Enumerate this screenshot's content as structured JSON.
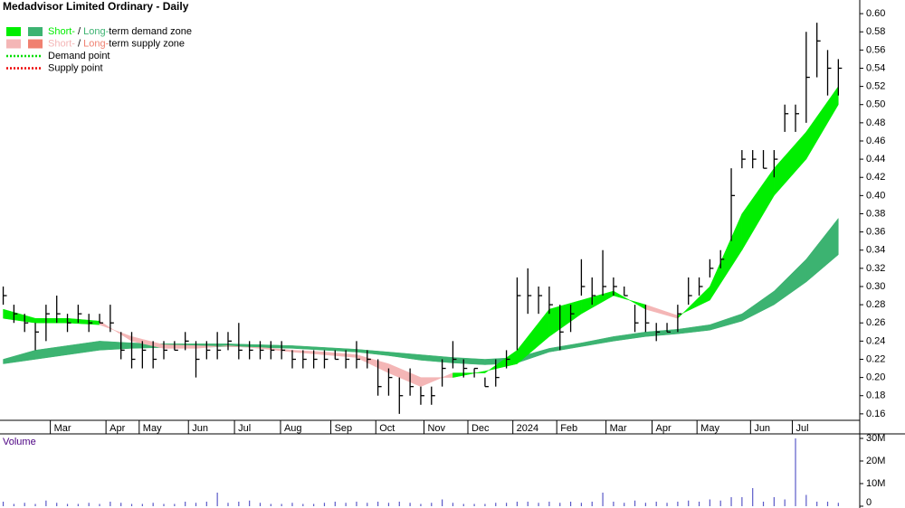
{
  "chart_data": [
    {
      "type": "ohlc",
      "title": "Medadvisor Limited Ordinary - Daily",
      "x": [
        0,
        1,
        2,
        3,
        4,
        5,
        6,
        7,
        8,
        9,
        10,
        11,
        12,
        13,
        14,
        15,
        16,
        17,
        18,
        19,
        20,
        21,
        22,
        23,
        24,
        25,
        26,
        27,
        28,
        29,
        30,
        31,
        32,
        33,
        34,
        35,
        36,
        37,
        38,
        39,
        40,
        41,
        42,
        43,
        44,
        45,
        46,
        47,
        48,
        49,
        50,
        51,
        52,
        53,
        54,
        55,
        56,
        57,
        58,
        59,
        60,
        61,
        62,
        63,
        64,
        65,
        66,
        67,
        68,
        69,
        70,
        71,
        72,
        73,
        74,
        75,
        76,
        77,
        78
      ],
      "high": [
        0.3,
        0.28,
        0.27,
        0.26,
        0.28,
        0.29,
        0.27,
        0.28,
        0.27,
        0.27,
        0.28,
        0.25,
        0.25,
        0.24,
        0.24,
        0.24,
        0.24,
        0.25,
        0.24,
        0.24,
        0.25,
        0.25,
        0.26,
        0.24,
        0.24,
        0.24,
        0.24,
        0.23,
        0.23,
        0.23,
        0.23,
        0.23,
        0.23,
        0.24,
        0.23,
        0.22,
        0.21,
        0.2,
        0.21,
        0.19,
        0.19,
        0.22,
        0.24,
        0.22,
        0.21,
        0.2,
        0.22,
        0.23,
        0.31,
        0.32,
        0.3,
        0.3,
        0.28,
        0.28,
        0.33,
        0.31,
        0.34,
        0.31,
        0.3,
        0.28,
        0.28,
        0.26,
        0.26,
        0.28,
        0.31,
        0.31,
        0.33,
        0.34,
        0.43,
        0.45,
        0.45,
        0.45,
        0.45,
        0.5,
        0.5,
        0.58,
        0.59,
        0.56,
        0.55
      ],
      "low": [
        0.28,
        0.26,
        0.25,
        0.23,
        0.24,
        0.26,
        0.25,
        0.26,
        0.25,
        0.26,
        0.25,
        0.22,
        0.21,
        0.21,
        0.21,
        0.22,
        0.23,
        0.23,
        0.2,
        0.22,
        0.22,
        0.23,
        0.22,
        0.22,
        0.22,
        0.22,
        0.22,
        0.21,
        0.21,
        0.21,
        0.21,
        0.22,
        0.21,
        0.21,
        0.21,
        0.18,
        0.18,
        0.16,
        0.18,
        0.17,
        0.17,
        0.19,
        0.21,
        0.2,
        0.2,
        0.19,
        0.19,
        0.21,
        0.23,
        0.27,
        0.27,
        0.27,
        0.23,
        0.25,
        0.29,
        0.28,
        0.29,
        0.29,
        0.29,
        0.25,
        0.25,
        0.24,
        0.25,
        0.25,
        0.28,
        0.29,
        0.31,
        0.32,
        0.35,
        0.43,
        0.43,
        0.43,
        0.42,
        0.47,
        0.47,
        0.48,
        0.53,
        0.51,
        0.51
      ],
      "close": [
        0.29,
        0.27,
        0.26,
        0.25,
        0.27,
        0.27,
        0.26,
        0.27,
        0.26,
        0.26,
        0.26,
        0.23,
        0.22,
        0.23,
        0.22,
        0.23,
        0.23,
        0.24,
        0.22,
        0.23,
        0.23,
        0.24,
        0.23,
        0.23,
        0.23,
        0.23,
        0.23,
        0.22,
        0.22,
        0.22,
        0.22,
        0.22,
        0.22,
        0.22,
        0.22,
        0.19,
        0.2,
        0.18,
        0.19,
        0.18,
        0.18,
        0.21,
        0.22,
        0.21,
        0.21,
        0.19,
        0.2,
        0.22,
        0.29,
        0.29,
        0.29,
        0.28,
        0.25,
        0.27,
        0.3,
        0.29,
        0.3,
        0.3,
        0.29,
        0.26,
        0.26,
        0.25,
        0.25,
        0.27,
        0.29,
        0.3,
        0.32,
        0.33,
        0.4,
        0.44,
        0.44,
        0.43,
        0.44,
        0.49,
        0.49,
        0.53,
        0.57,
        0.54,
        0.54
      ],
      "color": "#000000",
      "short_zone": {
        "x": [
          0,
          3,
          6,
          9,
          12,
          15,
          18,
          21,
          24,
          27,
          30,
          33,
          36,
          39,
          42,
          45,
          48,
          51,
          54,
          57,
          60,
          63,
          66,
          69,
          72,
          75,
          78
        ],
        "fast": [
          0.275,
          0.265,
          0.265,
          0.262,
          0.24,
          0.232,
          0.232,
          0.235,
          0.232,
          0.228,
          0.225,
          0.222,
          0.205,
          0.19,
          0.205,
          0.205,
          0.23,
          0.275,
          0.285,
          0.295,
          0.275,
          0.265,
          0.3,
          0.38,
          0.43,
          0.47,
          0.52
        ],
        "slow": [
          0.265,
          0.26,
          0.26,
          0.258,
          0.245,
          0.236,
          0.235,
          0.234,
          0.233,
          0.23,
          0.228,
          0.225,
          0.215,
          0.2,
          0.2,
          0.207,
          0.215,
          0.245,
          0.27,
          0.29,
          0.28,
          0.268,
          0.285,
          0.34,
          0.4,
          0.44,
          0.5
        ],
        "demand_color": "#00ee00",
        "supply_color": "#f4b6b6"
      },
      "long_zone": {
        "x": [
          0,
          3,
          6,
          9,
          12,
          15,
          18,
          21,
          24,
          27,
          30,
          33,
          36,
          39,
          42,
          45,
          48,
          51,
          54,
          57,
          60,
          63,
          66,
          69,
          72,
          75,
          78
        ],
        "fast": [
          0.22,
          0.23,
          0.235,
          0.24,
          0.238,
          0.237,
          0.237,
          0.237,
          0.236,
          0.235,
          0.233,
          0.231,
          0.228,
          0.225,
          0.222,
          0.22,
          0.222,
          0.232,
          0.238,
          0.245,
          0.25,
          0.253,
          0.258,
          0.27,
          0.295,
          0.33,
          0.375
        ],
        "slow": [
          0.215,
          0.22,
          0.225,
          0.23,
          0.232,
          0.233,
          0.233,
          0.234,
          0.233,
          0.232,
          0.23,
          0.228,
          0.224,
          0.219,
          0.216,
          0.214,
          0.216,
          0.228,
          0.234,
          0.24,
          0.245,
          0.248,
          0.252,
          0.262,
          0.28,
          0.305,
          0.335
        ],
        "demand_color": "#3cb371",
        "supply_color": "#f26522"
      },
      "legend": [
        {
          "parts": [
            "Short-",
            " / ",
            "Long-",
            "term demand zone"
          ],
          "colors": [
            "#00ee00",
            "#000000",
            "#3cb371",
            "#000000"
          ],
          "swatches": [
            "#00ee00",
            "#3cb371"
          ]
        },
        {
          "parts": [
            "Short-",
            " / ",
            "Long-",
            "term supply zone"
          ],
          "colors": [
            "#f4b6b6",
            "#000000",
            "#f08070",
            "#000000"
          ],
          "swatches": [
            "#f4b6b6",
            "#f08070"
          ]
        },
        {
          "parts": [
            "Demand point"
          ],
          "colors": [
            "#000000"
          ],
          "line": "#00dd00"
        },
        {
          "parts": [
            "Supply point"
          ],
          "colors": [
            "#000000"
          ],
          "line": "#ee0000"
        }
      ],
      "xlim": [
        -0.3,
        80
      ],
      "xticks": [
        {
          "value": 4.4,
          "label": "Mar"
        },
        {
          "value": 9.6,
          "label": "Apr"
        },
        {
          "value": 12.7,
          "label": "May"
        },
        {
          "value": 17.3,
          "label": "Jun"
        },
        {
          "value": 21.6,
          "label": "Jul"
        },
        {
          "value": 25.9,
          "label": "Aug"
        },
        {
          "value": 30.6,
          "label": "Sep"
        },
        {
          "value": 34.8,
          "label": "Oct"
        },
        {
          "value": 39.3,
          "label": "Nov"
        },
        {
          "value": 43.4,
          "label": "Dec"
        },
        {
          "value": 47.6,
          "label": "2024"
        },
        {
          "value": 51.7,
          "label": "Feb"
        },
        {
          "value": 56.3,
          "label": "Mar"
        },
        {
          "value": 60.6,
          "label": "Apr"
        },
        {
          "value": 64.8,
          "label": "May"
        },
        {
          "value": 69.8,
          "label": "Jun"
        },
        {
          "value": 73.7,
          "label": "Jul"
        }
      ],
      "ylim": [
        0.138,
        0.615
      ],
      "yticks": [
        {
          "value": 0.16,
          "label": "0.16"
        },
        {
          "value": 0.18,
          "label": "0.18"
        },
        {
          "value": 0.2,
          "label": "0.20"
        },
        {
          "value": 0.22,
          "label": "0.22"
        },
        {
          "value": 0.24,
          "label": "0.24"
        },
        {
          "value": 0.26,
          "label": "0.26"
        },
        {
          "value": 0.28,
          "label": "0.28"
        },
        {
          "value": 0.3,
          "label": "0.30"
        },
        {
          "value": 0.32,
          "label": "0.32"
        },
        {
          "value": 0.34,
          "label": "0.34"
        },
        {
          "value": 0.36,
          "label": "0.36"
        },
        {
          "value": 0.38,
          "label": "0.38"
        },
        {
          "value": 0.4,
          "label": "0.40"
        },
        {
          "value": 0.42,
          "label": "0.42"
        },
        {
          "value": 0.44,
          "label": "0.44"
        },
        {
          "value": 0.46,
          "label": "0.46"
        },
        {
          "value": 0.48,
          "label": "0.48"
        },
        {
          "value": 0.5,
          "label": "0.50"
        },
        {
          "value": 0.52,
          "label": "0.52"
        },
        {
          "value": 0.54,
          "label": "0.54"
        },
        {
          "value": 0.56,
          "label": "0.56"
        },
        {
          "value": 0.58,
          "label": "0.58"
        },
        {
          "value": 0.6,
          "label": "0.60"
        }
      ]
    },
    {
      "type": "bar",
      "title": "Volume",
      "title_color": "#4b0082",
      "x": [
        0,
        1,
        2,
        3,
        4,
        5,
        6,
        7,
        8,
        9,
        10,
        11,
        12,
        13,
        14,
        15,
        16,
        17,
        18,
        19,
        20,
        21,
        22,
        23,
        24,
        25,
        26,
        27,
        28,
        29,
        30,
        31,
        32,
        33,
        34,
        35,
        36,
        37,
        38,
        39,
        40,
        41,
        42,
        43,
        44,
        45,
        46,
        47,
        48,
        49,
        50,
        51,
        52,
        53,
        54,
        55,
        56,
        57,
        58,
        59,
        60,
        61,
        62,
        63,
        64,
        65,
        66,
        67,
        68,
        69,
        70,
        71,
        72,
        73,
        74,
        75,
        76,
        77,
        78
      ],
      "values": [
        2000000,
        1000000,
        1500000,
        1000000,
        2500000,
        1500000,
        1000000,
        1000000,
        1500000,
        1000000,
        2000000,
        1500000,
        1000000,
        1000000,
        1500000,
        1000000,
        1000000,
        2000000,
        1500000,
        2000000,
        6000000,
        1500000,
        2000000,
        2500000,
        1500000,
        1000000,
        1000000,
        1500000,
        1000000,
        1000000,
        1500000,
        2000000,
        1500000,
        2000000,
        1500000,
        2000000,
        1500000,
        2000000,
        1500000,
        1000000,
        1500000,
        3000000,
        1500000,
        1000000,
        1000000,
        1000000,
        1500000,
        1500000,
        2000000,
        2000000,
        1500000,
        2000000,
        1500000,
        2000000,
        1500000,
        2000000,
        6000000,
        2000000,
        1500000,
        2500000,
        1500000,
        2000000,
        1500000,
        2000000,
        2500000,
        2000000,
        3000000,
        2500000,
        4000000,
        4000000,
        8000000,
        2000000,
        4000000,
        3000000,
        30000000,
        5000000,
        2000000,
        2000000,
        1500000
      ],
      "color": "#5a5ac8",
      "xlim": [
        -0.3,
        80
      ],
      "ylim": [
        0,
        32000000
      ],
      "yticks": [
        0,
        {
          "value": 10000000,
          "label": "10M"
        },
        {
          "value": 20000000,
          "label": "20M"
        },
        {
          "value": 30000000,
          "label": "30M"
        }
      ]
    }
  ]
}
